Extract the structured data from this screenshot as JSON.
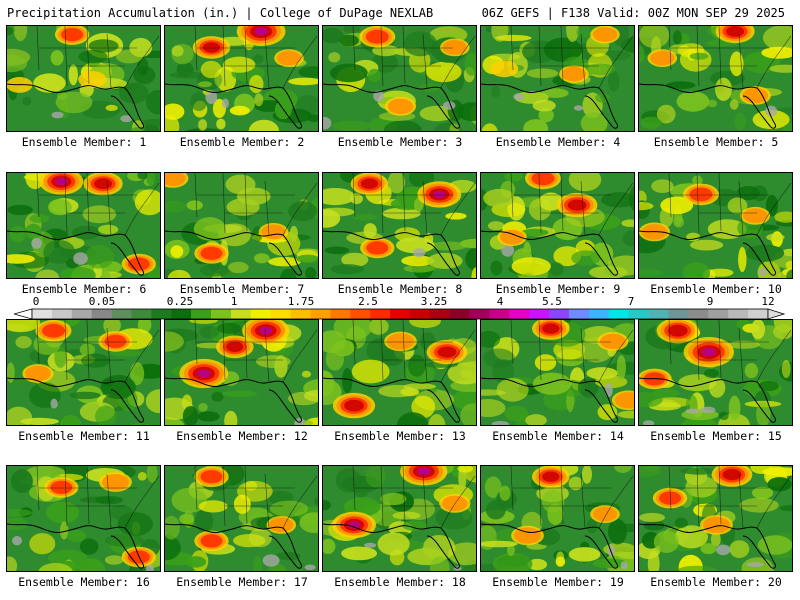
{
  "header": {
    "left_title": "Precipitation Accumulation (in.) | College of DuPage NEXLAB",
    "right_title": "06Z GEFS | F138 Valid: 00Z MON SEP 29 2025"
  },
  "panels": [
    {
      "label": "Ensemble Member: 1",
      "member": 1,
      "hotspots": [
        [
          0.42,
          0.08,
          0.45
        ],
        [
          0.55,
          0.5,
          0.25
        ],
        [
          0.08,
          0.55,
          0.2
        ]
      ]
    },
    {
      "label": "Ensemble Member: 2",
      "member": 2,
      "hotspots": [
        [
          0.62,
          0.05,
          0.9
        ],
        [
          0.3,
          0.2,
          0.55
        ],
        [
          0.8,
          0.3,
          0.3
        ]
      ]
    },
    {
      "label": "Ensemble Member: 3",
      "member": 3,
      "hotspots": [
        [
          0.35,
          0.1,
          0.5
        ],
        [
          0.5,
          0.75,
          0.35
        ],
        [
          0.85,
          0.2,
          0.3
        ]
      ]
    },
    {
      "label": "Ensemble Member: 4",
      "member": 4,
      "hotspots": [
        [
          0.8,
          0.08,
          0.3
        ],
        [
          0.6,
          0.45,
          0.3
        ],
        [
          0.15,
          0.4,
          0.25
        ]
      ]
    },
    {
      "label": "Ensemble Member: 5",
      "member": 5,
      "hotspots": [
        [
          0.62,
          0.05,
          0.6
        ],
        [
          0.15,
          0.3,
          0.3
        ],
        [
          0.75,
          0.65,
          0.35
        ]
      ]
    },
    {
      "label": "Ensemble Member: 6",
      "member": 6,
      "hotspots": [
        [
          0.35,
          0.08,
          0.75
        ],
        [
          0.62,
          0.1,
          0.6
        ],
        [
          0.85,
          0.85,
          0.45
        ]
      ]
    },
    {
      "label": "Ensemble Member: 7",
      "member": 7,
      "hotspots": [
        [
          0.05,
          0.05,
          0.35
        ],
        [
          0.3,
          0.75,
          0.45
        ],
        [
          0.7,
          0.55,
          0.3
        ]
      ]
    },
    {
      "label": "Ensemble Member: 8",
      "member": 8,
      "hotspots": [
        [
          0.75,
          0.2,
          0.75
        ],
        [
          0.3,
          0.1,
          0.55
        ],
        [
          0.35,
          0.7,
          0.45
        ]
      ]
    },
    {
      "label": "Ensemble Member: 9",
      "member": 9,
      "hotspots": [
        [
          0.62,
          0.3,
          0.65
        ],
        [
          0.4,
          0.05,
          0.5
        ],
        [
          0.2,
          0.6,
          0.3
        ]
      ]
    },
    {
      "label": "Ensemble Member: 10",
      "member": 10,
      "hotspots": [
        [
          0.4,
          0.2,
          0.5
        ],
        [
          0.1,
          0.55,
          0.35
        ],
        [
          0.75,
          0.4,
          0.3
        ]
      ]
    },
    {
      "label": "Ensemble Member: 11",
      "member": 11,
      "hotspots": [
        [
          0.3,
          0.1,
          0.5
        ],
        [
          0.7,
          0.2,
          0.45
        ],
        [
          0.2,
          0.5,
          0.35
        ]
      ]
    },
    {
      "label": "Ensemble Member: 12",
      "member": 12,
      "hotspots": [
        [
          0.25,
          0.5,
          0.9
        ],
        [
          0.65,
          0.1,
          0.85
        ],
        [
          0.45,
          0.25,
          0.55
        ]
      ]
    },
    {
      "label": "Ensemble Member: 13",
      "member": 13,
      "hotspots": [
        [
          0.2,
          0.8,
          0.7
        ],
        [
          0.8,
          0.3,
          0.65
        ],
        [
          0.5,
          0.2,
          0.4
        ]
      ]
    },
    {
      "label": "Ensemble Member: 14",
      "member": 14,
      "hotspots": [
        [
          0.45,
          0.08,
          0.55
        ],
        [
          0.85,
          0.2,
          0.35
        ],
        [
          0.95,
          0.75,
          0.4
        ]
      ]
    },
    {
      "label": "Ensemble Member: 15",
      "member": 15,
      "hotspots": [
        [
          0.45,
          0.3,
          0.95
        ],
        [
          0.25,
          0.1,
          0.7
        ],
        [
          0.1,
          0.55,
          0.45
        ]
      ]
    },
    {
      "label": "Ensemble Member: 16",
      "member": 16,
      "hotspots": [
        [
          0.35,
          0.2,
          0.45
        ],
        [
          0.7,
          0.15,
          0.4
        ],
        [
          0.85,
          0.85,
          0.45
        ]
      ]
    },
    {
      "label": "Ensemble Member: 17",
      "member": 17,
      "hotspots": [
        [
          0.3,
          0.1,
          0.45
        ],
        [
          0.3,
          0.7,
          0.45
        ],
        [
          0.75,
          0.55,
          0.3
        ]
      ]
    },
    {
      "label": "Ensemble Member: 18",
      "member": 18,
      "hotspots": [
        [
          0.65,
          0.05,
          0.85
        ],
        [
          0.2,
          0.55,
          0.75
        ],
        [
          0.85,
          0.35,
          0.35
        ]
      ]
    },
    {
      "label": "Ensemble Member: 19",
      "member": 19,
      "hotspots": [
        [
          0.45,
          0.1,
          0.55
        ],
        [
          0.3,
          0.65,
          0.4
        ],
        [
          0.8,
          0.45,
          0.3
        ]
      ]
    },
    {
      "label": "Ensemble Member: 20",
      "member": 20,
      "hotspots": [
        [
          0.6,
          0.08,
          0.65
        ],
        [
          0.2,
          0.3,
          0.45
        ],
        [
          0.5,
          0.55,
          0.4
        ]
      ]
    }
  ],
  "legend": {
    "tick_labels": [
      "0",
      "0.05",
      "0.25",
      "1",
      "1.75",
      "2.5",
      "3.25",
      "4",
      "5.5",
      "7",
      "9",
      "12"
    ],
    "colors": [
      "#e0e0e0",
      "#c8c8c8",
      "#a8a8a8",
      "#888888",
      "#5f8f5f",
      "#3d8a3d",
      "#1e7a1e",
      "#0c6e0c",
      "#3aa01a",
      "#7cc21e",
      "#c6df1e",
      "#f0f000",
      "#ffdc00",
      "#ffbe00",
      "#ffa000",
      "#ff7800",
      "#ff5000",
      "#ff2a00",
      "#e60000",
      "#c80000",
      "#aa0014",
      "#8c0028",
      "#a0005a",
      "#c8008c",
      "#e600c8",
      "#c814ff",
      "#8c46ff",
      "#6e8cff",
      "#3cb4ff",
      "#00e6e6",
      "#28c8c8",
      "#50b4b4",
      "#6e9696",
      "#8c8c8c",
      "#a0a0a0",
      "#b9b9b9",
      "#cfcfcf"
    ]
  }
}
